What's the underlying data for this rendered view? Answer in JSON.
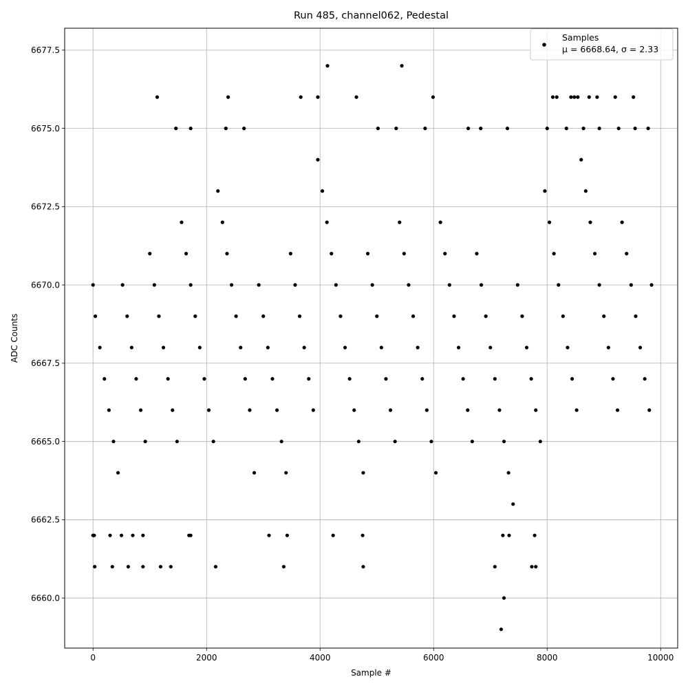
{
  "chart_data": {
    "type": "scatter",
    "title": "Run 485, channel062, Pedestal",
    "xlabel": "Sample #",
    "ylabel": "ADC Counts",
    "xlim": [
      -500,
      10300
    ],
    "ylim": [
      6658.4,
      6678.2
    ],
    "xticks": [
      0,
      2000,
      4000,
      6000,
      8000,
      10000
    ],
    "xtick_labels": [
      "0",
      "2000",
      "4000",
      "6000",
      "8000",
      "10000"
    ],
    "yticks": [
      6660.0,
      6662.5,
      6665.0,
      6667.5,
      6670.0,
      6672.5,
      6675.0,
      6677.5
    ],
    "ytick_labels": [
      "6660.0",
      "6662.5",
      "6665.0",
      "6667.5",
      "6670.0",
      "6672.5",
      "6675.0",
      "6677.5"
    ],
    "grid": true,
    "legend_position": "top-right",
    "marker_color": "#000000",
    "series": [
      {
        "name": "Samples",
        "stats_label": "μ = 6668.64, σ = 2.33",
        "x": [
          0,
          40,
          120,
          200,
          280,
          360,
          440,
          520,
          600,
          680,
          760,
          840,
          920,
          1000,
          1080,
          1160,
          1240,
          1320,
          1400,
          1480,
          1560,
          1640,
          1720,
          1800,
          1880,
          1960,
          2040,
          2120,
          2200,
          2280,
          2360,
          2440,
          2520,
          2600,
          2680,
          2760,
          2840,
          2920,
          3000,
          3080,
          3160,
          3240,
          3320,
          3400,
          3480,
          3560,
          3640,
          3720,
          3800,
          3880,
          3960,
          4040,
          4120,
          4200,
          4280,
          4360,
          4440,
          4520,
          4600,
          4680,
          4760,
          4840,
          4920,
          5000,
          5080,
          5160,
          5240,
          5320,
          5400,
          5480,
          5560,
          5640,
          5720,
          5800,
          5880,
          5960,
          6040,
          6120,
          6200,
          6280,
          6360,
          6440,
          6520,
          6600,
          6680,
          6760,
          6840,
          6920,
          7000,
          7080,
          7160,
          7240,
          7320,
          7400,
          7480,
          7560,
          7640,
          7720,
          7800,
          7880,
          7960,
          8040,
          8120,
          8200,
          8280,
          8360,
          8440,
          8520,
          8600,
          8680,
          8760,
          8840,
          8920,
          9000,
          9080,
          9160,
          9240,
          9320,
          9400,
          9480,
          9560,
          9640,
          9720,
          9800,
          9840,
          1130,
          2380,
          3660,
          3960,
          4130,
          4640,
          5440,
          5990,
          8100,
          8170,
          8420,
          8480,
          8540,
          8740,
          8880,
          9200,
          9520,
          1460,
          1720,
          2340,
          2660,
          5020,
          5340,
          5850,
          6610,
          6830,
          7300,
          8000,
          8340,
          8640,
          8920,
          9260,
          9550,
          9780,
          7240,
          7190,
          30,
          20,
          340,
          620,
          880,
          1190,
          1370,
          2160,
          3360,
          4760,
          7080,
          7730,
          7800,
          0,
          300,
          500,
          700,
          880,
          1690,
          1720,
          3100,
          3420,
          4230,
          4750,
          7220,
          7330,
          7780
        ],
        "y": [
          6670,
          6669,
          6668,
          6667,
          6666,
          6665,
          6664,
          6670,
          6669,
          6668,
          6667,
          6666,
          6665,
          6671,
          6670,
          6669,
          6668,
          6667,
          6666,
          6665,
          6672,
          6671,
          6670,
          6669,
          6668,
          6667,
          6666,
          6665,
          6673,
          6672,
          6671,
          6670,
          6669,
          6668,
          6667,
          6666,
          6664,
          6670,
          6669,
          6668,
          6667,
          6666,
          6665,
          6664,
          6671,
          6670,
          6669,
          6668,
          6667,
          6666,
          6674,
          6673,
          6672,
          6671,
          6670,
          6669,
          6668,
          6667,
          6666,
          6665,
          6664,
          6671,
          6670,
          6669,
          6668,
          6667,
          6666,
          6665,
          6672,
          6671,
          6670,
          6669,
          6668,
          6667,
          6666,
          6665,
          6664,
          6672,
          6671,
          6670,
          6669,
          6668,
          6667,
          6666,
          6665,
          6671,
          6670,
          6669,
          6668,
          6667,
          6666,
          6665,
          6664,
          6663,
          6670,
          6669,
          6668,
          6667,
          6666,
          6665,
          6673,
          6672,
          6671,
          6670,
          6669,
          6668,
          6667,
          6666,
          6674,
          6673,
          6672,
          6671,
          6670,
          6669,
          6668,
          6667,
          6666,
          6672,
          6671,
          6670,
          6669,
          6668,
          6667,
          6666,
          6670,
          6676,
          6676,
          6676,
          6676,
          6677,
          6676,
          6677,
          6676,
          6676,
          6676,
          6676,
          6676,
          6676,
          6676,
          6676,
          6676,
          6676,
          6675,
          6675,
          6675,
          6675,
          6675,
          6675,
          6675,
          6675,
          6675,
          6675,
          6675,
          6675,
          6675,
          6675,
          6675,
          6675,
          6675,
          6660,
          6659,
          6661,
          6662,
          6661,
          6661,
          6661,
          6661,
          6661,
          6661,
          6661,
          6661,
          6661,
          6661,
          6661,
          6662,
          6662,
          6662,
          6662,
          6662,
          6662,
          6662,
          6662,
          6662,
          6662,
          6662,
          6662,
          6662,
          6662
        ]
      }
    ]
  }
}
